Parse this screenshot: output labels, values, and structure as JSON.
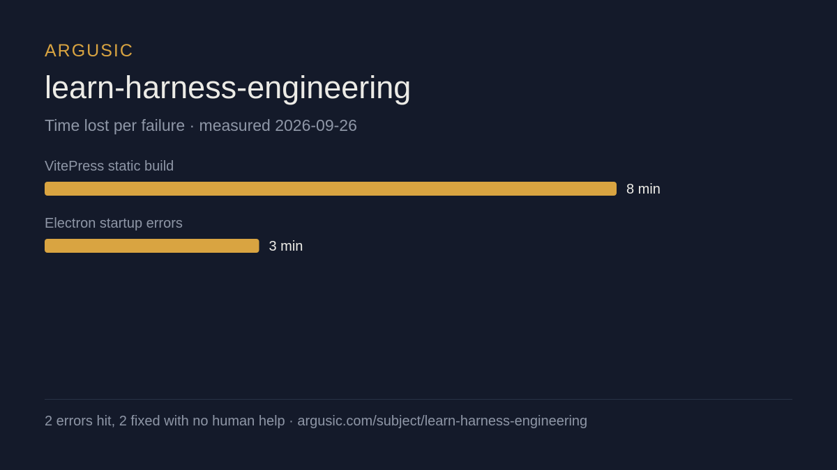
{
  "header": {
    "brand": "ARGUSIC",
    "title": "learn-harness-engineering",
    "subtitle": "Time lost per failure · measured 2026-09-26"
  },
  "footer": {
    "text": "2 errors hit, 2 fixed with no human help · argusic.com/subject/learn-harness-engineering"
  },
  "colors": {
    "background": "#141a2a",
    "accent": "#d9a441",
    "title": "#ecebe6",
    "muted": "#8e96a6",
    "value_text": "#ecebe6"
  },
  "chart_data": {
    "type": "bar",
    "orientation": "horizontal",
    "categories": [
      "VitePress static build",
      "Electron startup errors"
    ],
    "values": [
      8,
      3
    ],
    "value_labels": [
      "8 min",
      "3 min"
    ],
    "unit": "min",
    "xlim": [
      0,
      8
    ],
    "grid": false,
    "legend": "none",
    "title": "",
    "xlabel": "",
    "ylabel": ""
  }
}
